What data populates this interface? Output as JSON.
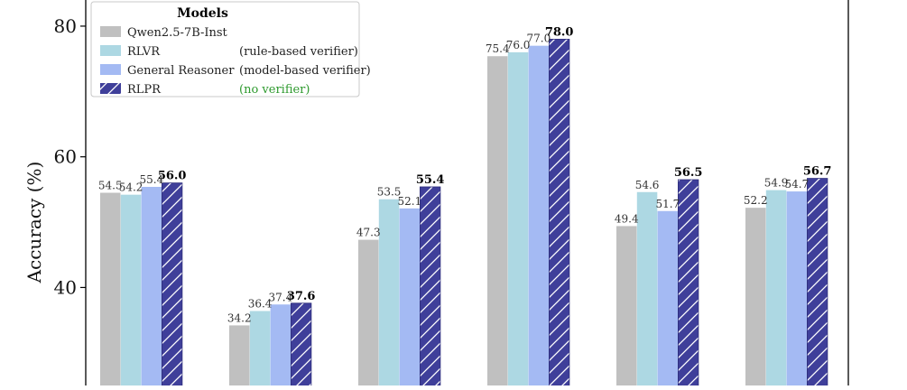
{
  "chart_data": {
    "type": "bar",
    "ylabel": "Accuracy (%)",
    "ylim": [
      25,
      84
    ],
    "yticks": [
      40,
      60,
      80
    ],
    "groups": 6,
    "legend": {
      "title": "Models",
      "placement": "top-left"
    },
    "series": [
      {
        "name": "Qwen2.5-7B-Inst",
        "note": "",
        "values": [
          54.5,
          34.2,
          47.3,
          75.4,
          49.4,
          52.2
        ],
        "color": "#c0c0c0",
        "hatch": false
      },
      {
        "name": "RLVR",
        "note": "(rule-based verifier)",
        "values": [
          54.2,
          36.4,
          53.5,
          76.0,
          54.6,
          54.9
        ],
        "color": "#add8e3",
        "hatch": false
      },
      {
        "name": "General Reasoner",
        "note": "(model-based verifier)",
        "values": [
          55.4,
          37.4,
          52.1,
          77.0,
          51.7,
          54.7
        ],
        "color": "#a4baf3",
        "hatch": false
      },
      {
        "name": "RLPR",
        "note": "(no verifier)",
        "values": [
          56.0,
          37.6,
          55.4,
          78.0,
          56.5,
          56.7
        ],
        "color": "#3f3f9a",
        "hatch": true,
        "bold_labels": true
      }
    ],
    "note_colors": [
      "#222222",
      "#222222",
      "#222222",
      "#2e9a2e"
    ]
  }
}
